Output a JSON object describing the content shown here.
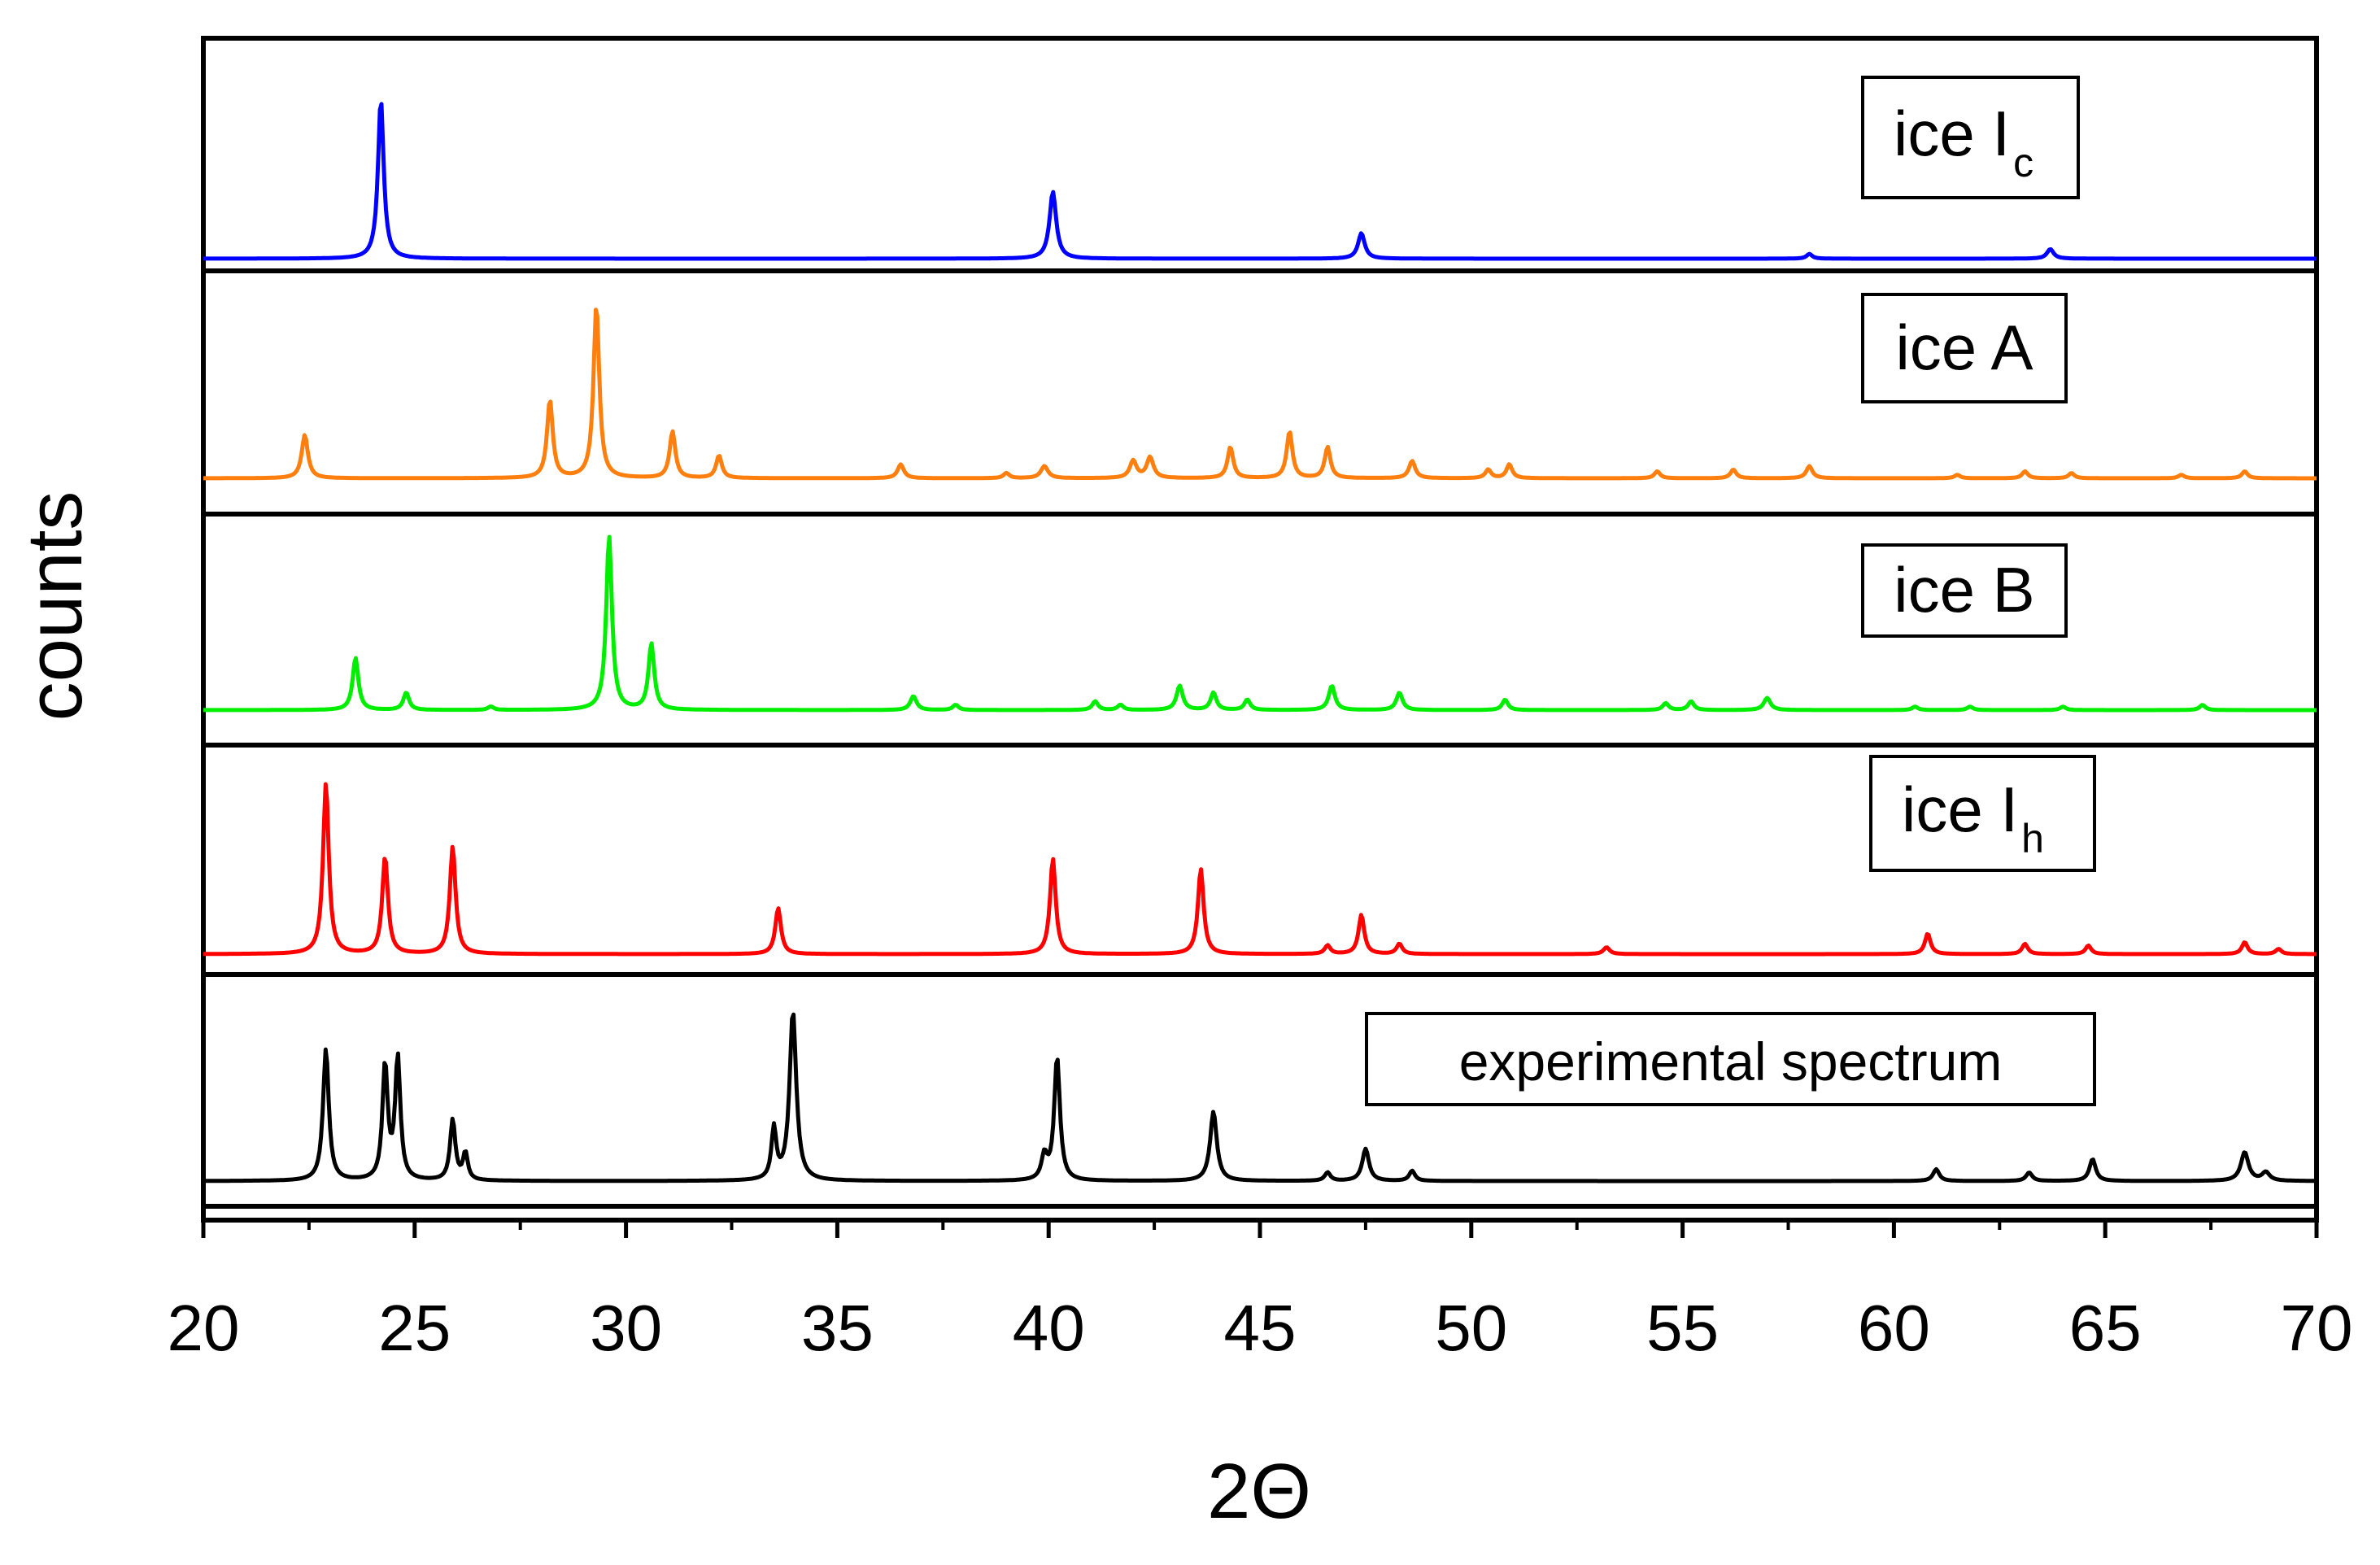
{
  "chart_data": {
    "type": "line",
    "title": "",
    "xlabel": "2Θ",
    "ylabel": "counts",
    "xlim": [
      20,
      70
    ],
    "xticks": [
      "20",
      "25",
      "30",
      "35",
      "40",
      "45",
      "50",
      "55",
      "60",
      "65",
      "70"
    ],
    "grid": false,
    "layout": "stacked panels, shared x axis",
    "series": [
      {
        "name": "ice Ic",
        "legend_main": "ice I",
        "legend_sub": "c",
        "color": "#0000ff",
        "peaks": [
          {
            "x": 24.2,
            "h": 1.0,
            "w": 0.12
          },
          {
            "x": 40.1,
            "h": 0.42,
            "w": 0.14
          },
          {
            "x": 47.4,
            "h": 0.16,
            "w": 0.14
          },
          {
            "x": 58.0,
            "h": 0.03,
            "w": 0.12
          },
          {
            "x": 63.7,
            "h": 0.06,
            "w": 0.14
          }
        ]
      },
      {
        "name": "ice A",
        "legend_main": "ice A",
        "legend_sub": "",
        "color": "#ff7f0e",
        "peaks": [
          {
            "x": 22.4,
            "h": 0.25,
            "w": 0.13
          },
          {
            "x": 28.2,
            "h": 0.45,
            "w": 0.12
          },
          {
            "x": 29.3,
            "h": 1.0,
            "w": 0.12
          },
          {
            "x": 31.1,
            "h": 0.27,
            "w": 0.12
          },
          {
            "x": 32.2,
            "h": 0.13,
            "w": 0.12
          },
          {
            "x": 36.5,
            "h": 0.08,
            "w": 0.13
          },
          {
            "x": 39.0,
            "h": 0.03,
            "w": 0.12
          },
          {
            "x": 39.9,
            "h": 0.07,
            "w": 0.15
          },
          {
            "x": 42.0,
            "h": 0.1,
            "w": 0.14
          },
          {
            "x": 42.4,
            "h": 0.12,
            "w": 0.14
          },
          {
            "x": 44.3,
            "h": 0.18,
            "w": 0.12
          },
          {
            "x": 45.7,
            "h": 0.27,
            "w": 0.12
          },
          {
            "x": 46.6,
            "h": 0.18,
            "w": 0.12
          },
          {
            "x": 48.6,
            "h": 0.1,
            "w": 0.13
          },
          {
            "x": 50.4,
            "h": 0.05,
            "w": 0.12
          },
          {
            "x": 50.9,
            "h": 0.08,
            "w": 0.12
          },
          {
            "x": 54.4,
            "h": 0.04,
            "w": 0.12
          },
          {
            "x": 56.2,
            "h": 0.05,
            "w": 0.12
          },
          {
            "x": 58.0,
            "h": 0.07,
            "w": 0.13
          },
          {
            "x": 61.5,
            "h": 0.02,
            "w": 0.12
          },
          {
            "x": 63.1,
            "h": 0.04,
            "w": 0.12
          },
          {
            "x": 64.2,
            "h": 0.03,
            "w": 0.12
          },
          {
            "x": 66.8,
            "h": 0.02,
            "w": 0.12
          },
          {
            "x": 68.3,
            "h": 0.04,
            "w": 0.12
          }
        ]
      },
      {
        "name": "ice B",
        "legend_main": "ice B",
        "legend_sub": "",
        "color": "#00ee00",
        "peaks": [
          {
            "x": 23.6,
            "h": 0.3,
            "w": 0.12
          },
          {
            "x": 24.8,
            "h": 0.1,
            "w": 0.12
          },
          {
            "x": 26.8,
            "h": 0.02,
            "w": 0.12
          },
          {
            "x": 29.6,
            "h": 1.0,
            "w": 0.12
          },
          {
            "x": 30.6,
            "h": 0.38,
            "w": 0.12
          },
          {
            "x": 36.8,
            "h": 0.08,
            "w": 0.13
          },
          {
            "x": 37.8,
            "h": 0.03,
            "w": 0.12
          },
          {
            "x": 41.1,
            "h": 0.05,
            "w": 0.12
          },
          {
            "x": 41.7,
            "h": 0.03,
            "w": 0.12
          },
          {
            "x": 43.1,
            "h": 0.14,
            "w": 0.13
          },
          {
            "x": 43.9,
            "h": 0.1,
            "w": 0.12
          },
          {
            "x": 44.7,
            "h": 0.06,
            "w": 0.12
          },
          {
            "x": 46.7,
            "h": 0.14,
            "w": 0.13
          },
          {
            "x": 48.3,
            "h": 0.1,
            "w": 0.13
          },
          {
            "x": 50.8,
            "h": 0.06,
            "w": 0.12
          },
          {
            "x": 54.6,
            "h": 0.04,
            "w": 0.12
          },
          {
            "x": 55.2,
            "h": 0.05,
            "w": 0.12
          },
          {
            "x": 57.0,
            "h": 0.07,
            "w": 0.14
          },
          {
            "x": 60.5,
            "h": 0.02,
            "w": 0.12
          },
          {
            "x": 61.8,
            "h": 0.02,
            "w": 0.12
          },
          {
            "x": 64.0,
            "h": 0.02,
            "w": 0.12
          },
          {
            "x": 67.3,
            "h": 0.03,
            "w": 0.12
          }
        ]
      },
      {
        "name": "ice Ih",
        "legend_main": "ice I",
        "legend_sub": "h",
        "color": "#ff0000",
        "peaks": [
          {
            "x": 22.9,
            "h": 1.0,
            "w": 0.12
          },
          {
            "x": 24.3,
            "h": 0.57,
            "w": 0.12
          },
          {
            "x": 25.9,
            "h": 0.63,
            "w": 0.12
          },
          {
            "x": 33.6,
            "h": 0.27,
            "w": 0.12
          },
          {
            "x": 40.1,
            "h": 0.56,
            "w": 0.12
          },
          {
            "x": 43.6,
            "h": 0.5,
            "w": 0.12
          },
          {
            "x": 46.6,
            "h": 0.05,
            "w": 0.12
          },
          {
            "x": 47.4,
            "h": 0.23,
            "w": 0.12
          },
          {
            "x": 48.3,
            "h": 0.06,
            "w": 0.12
          },
          {
            "x": 53.2,
            "h": 0.04,
            "w": 0.13
          },
          {
            "x": 60.8,
            "h": 0.12,
            "w": 0.12
          },
          {
            "x": 63.1,
            "h": 0.06,
            "w": 0.12
          },
          {
            "x": 64.6,
            "h": 0.05,
            "w": 0.12
          },
          {
            "x": 68.3,
            "h": 0.07,
            "w": 0.12
          },
          {
            "x": 69.1,
            "h": 0.03,
            "w": 0.12
          }
        ]
      },
      {
        "name": "experimental spectrum",
        "legend_main": "experimental spectrum",
        "legend_sub": "",
        "color": "#000000",
        "peaks": [
          {
            "x": 22.9,
            "h": 0.78,
            "w": 0.12
          },
          {
            "x": 24.3,
            "h": 0.68,
            "w": 0.11
          },
          {
            "x": 24.6,
            "h": 0.72,
            "w": 0.11
          },
          {
            "x": 25.9,
            "h": 0.36,
            "w": 0.11
          },
          {
            "x": 26.2,
            "h": 0.16,
            "w": 0.1
          },
          {
            "x": 33.5,
            "h": 0.3,
            "w": 0.1
          },
          {
            "x": 33.95,
            "h": 1.0,
            "w": 0.14
          },
          {
            "x": 39.9,
            "h": 0.14,
            "w": 0.12
          },
          {
            "x": 40.2,
            "h": 0.73,
            "w": 0.12
          },
          {
            "x": 43.9,
            "h": 0.41,
            "w": 0.14
          },
          {
            "x": 46.6,
            "h": 0.05,
            "w": 0.12
          },
          {
            "x": 47.5,
            "h": 0.19,
            "w": 0.14
          },
          {
            "x": 48.6,
            "h": 0.06,
            "w": 0.12
          },
          {
            "x": 61.0,
            "h": 0.07,
            "w": 0.13
          },
          {
            "x": 63.2,
            "h": 0.05,
            "w": 0.13
          },
          {
            "x": 64.7,
            "h": 0.13,
            "w": 0.13
          },
          {
            "x": 68.3,
            "h": 0.17,
            "w": 0.16
          },
          {
            "x": 68.8,
            "h": 0.05,
            "w": 0.16
          }
        ]
      }
    ]
  }
}
